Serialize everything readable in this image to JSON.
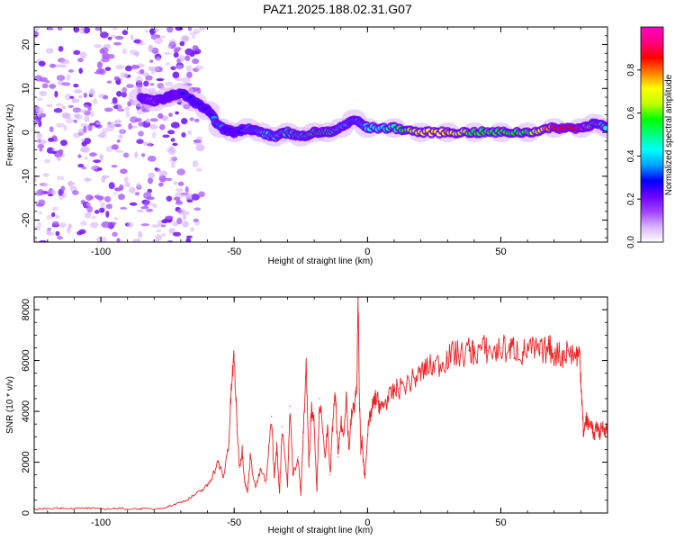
{
  "title": "PAZ1.2025.188.02.31.G07",
  "chart_data": [
    {
      "type": "heatmap",
      "xlabel": "Height of straight line (km)",
      "ylabel": "Frequency (Hz)",
      "xlim": [
        -125,
        90
      ],
      "ylim": [
        -25,
        24
      ],
      "x_ticks": [
        -100,
        -50,
        0,
        50
      ],
      "y_ticks": [
        -20,
        -10,
        0,
        10,
        20
      ],
      "grid": false,
      "colorbar": {
        "label": "Normalized spectral amplitude",
        "range": [
          0,
          1
        ],
        "ticks": [
          0.0,
          0.2,
          0.4,
          0.6,
          0.8
        ],
        "colors": [
          "#ffffff",
          "#d9b3ff",
          "#a040ff",
          "#6a00ff",
          "#0000ff",
          "#00a0ff",
          "#00ffff",
          "#00ff80",
          "#00ff00",
          "#c0ff00",
          "#ffff00",
          "#ff8000",
          "#ff0000",
          "#ff0080",
          "#ff00c0"
        ]
      },
      "ridge": {
        "x": [
          -85,
          -80,
          -75,
          -70,
          -65,
          -60,
          -55,
          -50,
          -45,
          -40,
          -35,
          -30,
          -25,
          -20,
          -15,
          -10,
          -5,
          0,
          10,
          20,
          30,
          40,
          50,
          60,
          70,
          80,
          85,
          90
        ],
        "frequency": [
          8,
          7,
          8,
          9,
          7,
          5,
          1,
          0,
          1,
          0,
          -1,
          0,
          -1,
          0,
          0,
          1,
          3,
          1,
          1,
          0,
          0,
          0,
          0,
          0,
          1,
          1,
          2,
          1
        ],
        "amplitude": [
          0.2,
          0.15,
          0.2,
          0.25,
          0.3,
          0.3,
          0.35,
          0.25,
          0.35,
          0.4,
          0.4,
          0.5,
          0.5,
          0.55,
          0.6,
          0.45,
          0.35,
          0.4,
          0.5,
          0.7,
          0.75,
          0.55,
          0.6,
          0.55,
          0.85,
          0.9,
          0.5,
          0.45
        ]
      },
      "noise_region": {
        "x_from": -125,
        "x_to": -62,
        "frequency_from": -25,
        "frequency_to": 24
      }
    },
    {
      "type": "line",
      "xlabel": "Height of straight line (km)",
      "ylabel": "SNR (10 * v/v)",
      "xlim": [
        -125,
        90
      ],
      "ylim": [
        0,
        8500
      ],
      "x_ticks": [
        -100,
        -50,
        0,
        50
      ],
      "y_ticks": [
        0,
        2000,
        4000,
        6000,
        8000
      ],
      "grid": false,
      "series": [
        {
          "color": "#ee2222",
          "x": [
            -125,
            -120,
            -115,
            -110,
            -105,
            -100,
            -95,
            -90,
            -85,
            -80,
            -75,
            -72,
            -68,
            -65,
            -62,
            -60,
            -58,
            -56,
            -54,
            -52,
            -51,
            -50,
            -49,
            -48,
            -47,
            -46,
            -45,
            -44,
            -42,
            -40,
            -38,
            -36,
            -35,
            -34,
            -33,
            -32,
            -30,
            -29,
            -28,
            -26,
            -25,
            -24,
            -23,
            -22,
            -21,
            -20,
            -19,
            -18,
            -16,
            -15,
            -14,
            -13,
            -12,
            -11,
            -10,
            -9,
            -8,
            -7,
            -6,
            -5,
            -4,
            -3.5,
            -3,
            -2.5,
            -2,
            -1.5,
            -1,
            0,
            1,
            2,
            3,
            4,
            5,
            6,
            8,
            10,
            12,
            15,
            18,
            20,
            22,
            25,
            28,
            30,
            33,
            35,
            38,
            40,
            43,
            45,
            48,
            50,
            53,
            55,
            58,
            60,
            63,
            65,
            68,
            70,
            73,
            75,
            78,
            79.5,
            80,
            80.5,
            81,
            82,
            83,
            84,
            85,
            86,
            87,
            88,
            89,
            90
          ],
          "y": [
            150,
            180,
            200,
            170,
            190,
            150,
            180,
            160,
            170,
            150,
            250,
            350,
            500,
            700,
            900,
            1100,
            1500,
            2000,
            1400,
            2800,
            5000,
            6200,
            3500,
            1800,
            2500,
            1200,
            800,
            2200,
            1000,
            1700,
            1200,
            3800,
            1400,
            2600,
            800,
            3400,
            1100,
            4200,
            1500,
            2200,
            700,
            3300,
            5900,
            1900,
            4200,
            3600,
            900,
            4500,
            2200,
            3300,
            1500,
            3700,
            4600,
            2200,
            3600,
            3000,
            4700,
            2500,
            3800,
            4200,
            4900,
            8450,
            4300,
            2500,
            2800,
            1900,
            1400,
            3100,
            3800,
            4200,
            4500,
            4400,
            4100,
            4300,
            4500,
            4800,
            4900,
            5100,
            5300,
            5500,
            5700,
            5800,
            5900,
            6100,
            6300,
            6200,
            6400,
            6300,
            6500,
            6400,
            6300,
            6500,
            6400,
            6500,
            6300,
            6400,
            6400,
            6300,
            6500,
            6300,
            6200,
            6400,
            6200,
            6300,
            5400,
            4200,
            3100,
            3700,
            3400,
            3600,
            2900,
            3500,
            3100,
            3400,
            3300,
            3300
          ]
        }
      ]
    }
  ]
}
